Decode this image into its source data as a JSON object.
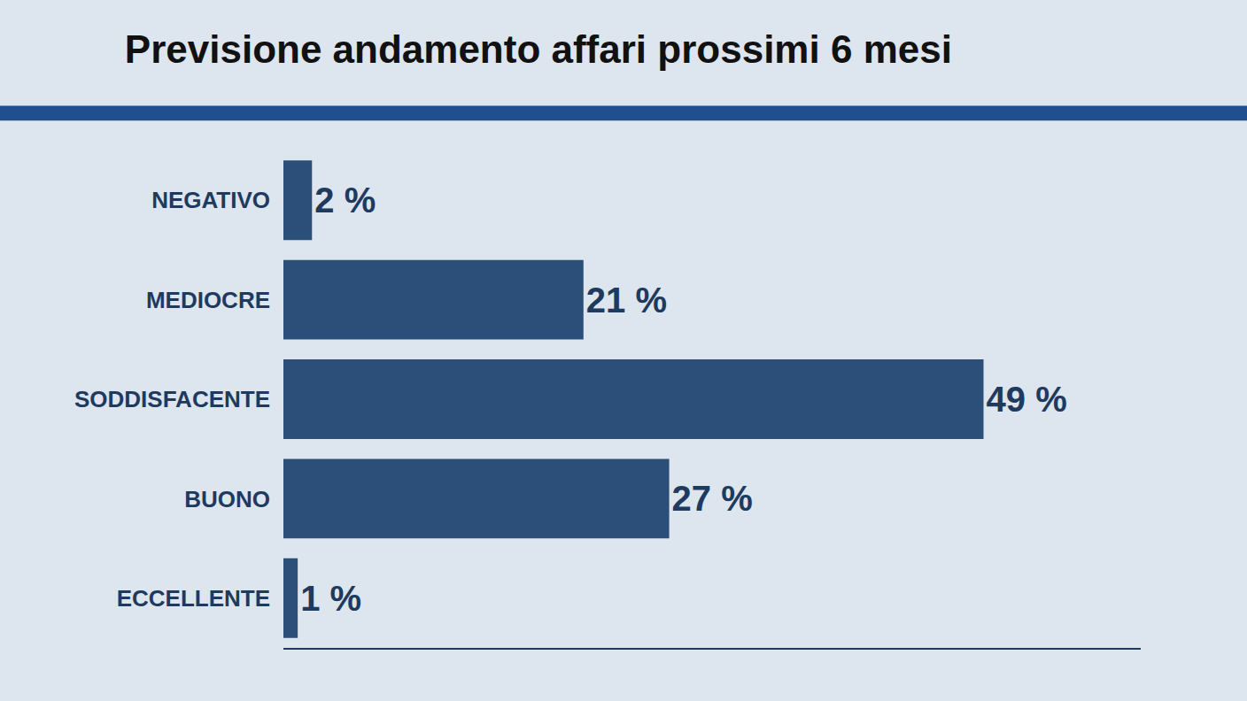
{
  "chart_data": {
    "type": "bar",
    "title": "Previsione andamento affari prossimi 6 mesi",
    "orientation": "horizontal",
    "categories": [
      "NEGATIVO",
      "MEDIOCRE",
      "SODDISFACENTE",
      "BUONO",
      "ECCELLENTE"
    ],
    "values": [
      2,
      21,
      49,
      27,
      1
    ],
    "value_labels": [
      "2 %",
      "21 %",
      "49 %",
      "27 %",
      "1 %"
    ],
    "color": "#2b4f78",
    "xlim": [
      0,
      60
    ],
    "data_labels": true,
    "tick_labels": "y",
    "grid": false
  }
}
